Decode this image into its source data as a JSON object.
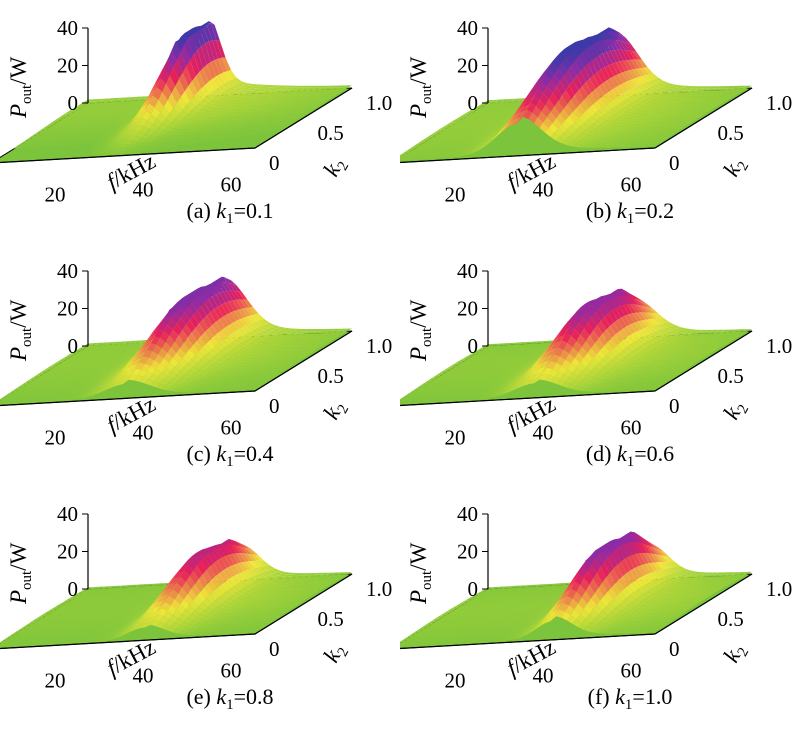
{
  "figure": {
    "z_axis_label": "P",
    "z_axis_label_sub": "out",
    "z_axis_label_unit": "/W",
    "x_axis_label_f": "f",
    "x_axis_label_unit": "/kHz",
    "y_axis_label_k": "k",
    "y_axis_label_sub": "2",
    "caption_symbol": "k",
    "caption_sub": "1",
    "z_ticks": [
      "0",
      "20",
      "40"
    ],
    "x_ticks": [
      "20",
      "40",
      "60"
    ],
    "y_ticks": [
      "0",
      "0.5",
      "1.0"
    ]
  },
  "colors": {
    "floor": "#7cc43c",
    "low": "#a6d33a",
    "mid": "#f0e63a",
    "high": "#e8205a",
    "peak": "#8a2ca8",
    "top": "#3a3aa8"
  },
  "chart_data": [
    {
      "type": "surface3d",
      "caption_prefix": "(a) ",
      "caption_value": "=0.1",
      "xlabel": "f/kHz",
      "ylabel": "k2",
      "zlabel": "Pout/W",
      "x_range": [
        5,
        65
      ],
      "y_range": [
        0,
        1.0
      ],
      "z_range": [
        0,
        40
      ],
      "k1": 0.1,
      "peak_f": 32,
      "peak_k2": 0.85,
      "peak_power": 40,
      "spread_f": 3,
      "spread_k2": 0.3
    },
    {
      "type": "surface3d",
      "caption_prefix": "(b) ",
      "caption_value": "=0.2",
      "xlabel": "f/kHz",
      "ylabel": "k2",
      "zlabel": "Pout/W",
      "x_range": [
        5,
        65
      ],
      "y_range": [
        0,
        1.0
      ],
      "z_range": [
        0,
        40
      ],
      "k1": 0.2,
      "peak_f": 34,
      "peak_k2": 0.6,
      "peak_power": 40,
      "spread_f": 5,
      "spread_k2": 0.45
    },
    {
      "type": "surface3d",
      "caption_prefix": "(c) ",
      "caption_value": "=0.4",
      "xlabel": "f/kHz",
      "ylabel": "k2",
      "zlabel": "Pout/W",
      "x_range": [
        5,
        65
      ],
      "y_range": [
        0,
        1.0
      ],
      "z_range": [
        0,
        40
      ],
      "k1": 0.4,
      "peak_f": 36,
      "peak_k2": 0.7,
      "peak_power": 34,
      "spread_f": 5,
      "spread_k2": 0.4
    },
    {
      "type": "surface3d",
      "caption_prefix": "(d) ",
      "caption_value": "=0.6",
      "xlabel": "f/kHz",
      "ylabel": "k2",
      "zlabel": "Pout/W",
      "x_range": [
        5,
        65
      ],
      "y_range": [
        0,
        1.0
      ],
      "z_range": [
        0,
        40
      ],
      "k1": 0.6,
      "peak_f": 38,
      "peak_k2": 0.6,
      "peak_power": 32,
      "spread_f": 5,
      "spread_k2": 0.35
    },
    {
      "type": "surface3d",
      "caption_prefix": "(e) ",
      "caption_value": "=0.8",
      "xlabel": "f/kHz",
      "ylabel": "k2",
      "zlabel": "Pout/W",
      "x_range": [
        5,
        65
      ],
      "y_range": [
        0,
        1.0
      ],
      "z_range": [
        0,
        40
      ],
      "k1": 0.8,
      "peak_f": 40,
      "peak_k2": 0.6,
      "peak_power": 28,
      "spread_f": 4,
      "spread_k2": 0.35
    },
    {
      "type": "surface3d",
      "caption_prefix": "(f) ",
      "caption_value": "=1.0",
      "xlabel": "f/kHz",
      "ylabel": "k2",
      "zlabel": "Pout/W",
      "x_range": [
        5,
        65
      ],
      "y_range": [
        0,
        1.0
      ],
      "z_range": [
        0,
        40
      ],
      "k1": 1.0,
      "peak_f": 42,
      "peak_k2": 0.55,
      "peak_power": 33,
      "spread_f": 4,
      "spread_k2": 0.35
    }
  ]
}
